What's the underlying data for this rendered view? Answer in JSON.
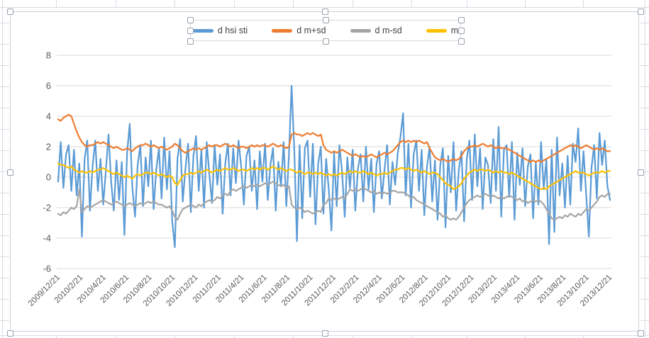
{
  "worksheet": {
    "description": "Excel worksheet with selected embedded chart",
    "cell_grid_color": "#d8dce3"
  },
  "chart_data": {
    "type": "line",
    "title": "",
    "xlabel": "",
    "ylabel": "",
    "ylim": [
      -6,
      8
    ],
    "y_ticks": [
      8,
      6,
      4,
      2,
      0,
      -2,
      -4,
      -6
    ],
    "grid": true,
    "legend_position": "top",
    "gridline_color": "#d9d9d9",
    "axis_text_color": "#595959",
    "n_points": 209,
    "x_tick_labels": [
      "2009/12/21",
      "2010/2/21",
      "2010/4/21",
      "2010/6/21",
      "2010/8/21",
      "2010/10/21",
      "2010/12/21",
      "2011/2/21",
      "2011/4/21",
      "2011/6/21",
      "2011/8/21",
      "2011/10/21",
      "2011/12/21",
      "2012/2/21",
      "2012/4/21",
      "2012/6/21",
      "2012/8/21",
      "2012/10/21",
      "2012/12/21",
      "2013/2/21",
      "2013/4/21",
      "2013/6/21",
      "2013/8/21",
      "2013/10/21",
      "2013/12/21"
    ],
    "series": [
      {
        "name": "d hsi sti",
        "color": "#5B9BD5",
        "values": [
          -0.3,
          2.3,
          -0.7,
          1.5,
          2.1,
          -0.9,
          1.8,
          -1.2,
          0.9,
          -3.9,
          1.2,
          2.4,
          -2.2,
          0.7,
          2.4,
          -0.9,
          1.2,
          -1.8,
          0.4,
          2.8,
          -0.3,
          -2.2,
          1.1,
          -1.5,
          1.0,
          -3.8,
          1.6,
          3.5,
          -0.7,
          -2.6,
          0.8,
          2.1,
          -1.9,
          1.3,
          -0.6,
          2.4,
          -2.1,
          0.5,
          1.9,
          -1.4,
          2.6,
          -0.8,
          1.7,
          -2.9,
          -4.6,
          1.2,
          2.5,
          -1.6,
          0.6,
          2.2,
          -2.3,
          1.4,
          2.7,
          -0.9,
          1.8,
          -2.0,
          2.3,
          0.2,
          -1.7,
          2.1,
          -0.5,
          1.5,
          -2.4,
          0.9,
          2.2,
          -1.2,
          1.9,
          -0.4,
          2.4,
          0.7,
          -1.8,
          1.4,
          2.0,
          -0.9,
          1.1,
          -2.1,
          1.7,
          -0.3,
          2.2,
          -1.5,
          0.8,
          1.9,
          -2.2,
          1.0,
          -0.6,
          2.3,
          -1.9,
          1.5,
          6.0,
          1.8,
          -4.2,
          2.1,
          -2.7,
          1.9,
          2.4,
          -1.3,
          2.2,
          -3.1,
          0.9,
          2.0,
          -2.4,
          1.2,
          -0.8,
          -3.5,
          1.6,
          -1.9,
          2.1,
          0.4,
          -2.6,
          1.3,
          -0.7,
          1.8,
          -2.2,
          0.6,
          1.5,
          -1.6,
          2.0,
          -0.8,
          1.2,
          -2.3,
          0.9,
          1.7,
          -1.4,
          0.5,
          2.1,
          -1.8,
          1.0,
          -0.5,
          1.6,
          2.6,
          4.2,
          -1.2,
          2.2,
          -2.0,
          1.5,
          2.4,
          -0.9,
          1.8,
          -2.5,
          0.7,
          2.0,
          -1.6,
          1.1,
          -2.8,
          0.8,
          1.9,
          -3.3,
          1.4,
          -1.0,
          2.3,
          -2.2,
          0.5,
          1.7,
          -2.9,
          1.2,
          2.4,
          -1.5,
          2.8,
          -0.6,
          1.9,
          -2.1,
          1.3,
          0.8,
          -1.7,
          2.5,
          -0.9,
          3.3,
          -2.6,
          1.8,
          2.1,
          -1.3,
          2.3,
          -2.8,
          1.6,
          -0.5,
          1.9,
          -1.9,
          0.7,
          1.5,
          -2.7,
          1.0,
          -1.8,
          2.3,
          -0.8,
          1.2,
          -4.4,
          1.8,
          -3.6,
          2.6,
          -1.2,
          0.9,
          -2.0,
          1.4,
          -1.8,
          2.2,
          1.0,
          3.2,
          -0.9,
          1.7,
          -1.2,
          -3.9,
          0.6,
          2.1,
          -1.4,
          2.9,
          0.8,
          2.4,
          -0.6,
          -1.5
        ]
      },
      {
        "name": "d m+sd",
        "color": "#ED7D31",
        "values": [
          3.8,
          3.7,
          3.9,
          4.0,
          4.1,
          4.0,
          3.5,
          3.0,
          2.6,
          2.3,
          2.1,
          2.0,
          2.1,
          2.1,
          2.2,
          2.3,
          2.2,
          2.3,
          2.2,
          2.1,
          2.0,
          1.9,
          2.0,
          1.9,
          1.8,
          1.8,
          1.9,
          1.8,
          1.7,
          1.9,
          2.0,
          2.1,
          2.1,
          2.2,
          2.1,
          2.0,
          2.1,
          2.0,
          1.9,
          2.0,
          1.9,
          1.8,
          1.9,
          2.0,
          2.2,
          2.1,
          1.9,
          1.7,
          1.6,
          1.7,
          1.8,
          1.9,
          1.8,
          1.9,
          1.8,
          1.9,
          2.0,
          2.1,
          2.0,
          2.1,
          2.1,
          2.0,
          2.1,
          2.2,
          2.1,
          2.0,
          2.1,
          2.0,
          1.9,
          2.0,
          2.0,
          1.9,
          2.0,
          2.1,
          2.0,
          2.1,
          2.0,
          2.1,
          2.1,
          2.0,
          2.1,
          2.2,
          2.1,
          2.0,
          2.1,
          2.0,
          1.9,
          2.0,
          2.8,
          2.9,
          2.8,
          2.8,
          2.7,
          2.8,
          2.9,
          2.8,
          2.9,
          2.8,
          2.7,
          2.8,
          2.1,
          1.8,
          1.7,
          1.6,
          1.7,
          1.6,
          1.7,
          1.8,
          1.7,
          1.6,
          1.5,
          1.4,
          1.5,
          1.4,
          1.3,
          1.4,
          1.3,
          1.4,
          1.5,
          1.4,
          1.3,
          1.4,
          1.5,
          1.6,
          1.5,
          1.6,
          1.7,
          1.9,
          2.1,
          2.3,
          2.4,
          2.3,
          2.4,
          2.3,
          2.4,
          2.3,
          2.4,
          2.3,
          2.2,
          2.3,
          1.9,
          1.6,
          1.3,
          1.2,
          1.1,
          1.2,
          1.1,
          1.0,
          1.1,
          1.2,
          1.1,
          1.2,
          1.4,
          1.7,
          1.9,
          2.0,
          2.0,
          2.1,
          2.0,
          2.1,
          2.2,
          2.1,
          2.0,
          2.1,
          2.0,
          1.9,
          2.0,
          1.9,
          1.9,
          1.9,
          1.8,
          1.7,
          1.6,
          1.5,
          1.4,
          1.3,
          1.2,
          1.1,
          1.0,
          1.1,
          1.0,
          1.1,
          1.0,
          1.1,
          1.2,
          1.3,
          1.4,
          1.5,
          1.6,
          1.7,
          1.8,
          1.9,
          2.0,
          2.1,
          2.0,
          2.1,
          2.0,
          1.9,
          2.0,
          2.1,
          2.0,
          1.9,
          1.8,
          1.9,
          1.8,
          1.9,
          1.8,
          1.7,
          1.7
        ]
      },
      {
        "name": "d m-sd",
        "color": "#A5A5A5",
        "values": [
          -2.4,
          -2.5,
          -2.3,
          -2.4,
          -2.2,
          -2.0,
          -2.1,
          -1.9,
          -0.8,
          -2.3,
          -2.1,
          -1.9,
          -2.0,
          -1.9,
          -1.8,
          -1.7,
          -1.6,
          -1.5,
          -1.6,
          -1.7,
          -1.8,
          -1.7,
          -1.6,
          -1.7,
          -1.8,
          -1.9,
          -1.8,
          -1.7,
          -1.8,
          -1.9,
          -1.8,
          -1.7,
          -1.8,
          -1.7,
          -1.6,
          -1.7,
          -1.6,
          -1.7,
          -1.8,
          -1.8,
          -1.9,
          -2.0,
          -1.9,
          -2.2,
          -2.6,
          -2.8,
          -2.4,
          -2.1,
          -2.0,
          -1.9,
          -1.8,
          -1.9,
          -2.0,
          -1.8,
          -1.9,
          -1.7,
          -1.6,
          -1.5,
          -1.6,
          -1.5,
          -1.3,
          -1.4,
          -1.2,
          -1.1,
          -1.2,
          -0.9,
          -0.8,
          -0.9,
          -0.8,
          -0.7,
          -0.6,
          -0.7,
          -0.6,
          -0.5,
          -0.6,
          -0.5,
          -0.6,
          -0.5,
          -0.4,
          -0.5,
          -0.4,
          -0.3,
          -0.4,
          -0.5,
          -0.6,
          -0.5,
          -0.7,
          -0.6,
          -1.8,
          -2.0,
          -2.1,
          -2.0,
          -2.1,
          -2.3,
          -2.2,
          -2.3,
          -2.4,
          -2.3,
          -2.2,
          -2.3,
          -1.8,
          -1.7,
          -1.4,
          -1.5,
          -1.4,
          -1.5,
          -1.4,
          -1.3,
          -1.4,
          -1.1,
          -0.8,
          -0.9,
          -0.8,
          -0.9,
          -0.8,
          -0.7,
          -0.8,
          -0.9,
          -1.0,
          -0.9,
          -1.1,
          -1.0,
          -1.1,
          -1.0,
          -1.1,
          -1.0,
          -0.9,
          -0.9,
          -1.0,
          -1.0,
          -1.0,
          -1.1,
          -1.2,
          -1.4,
          -1.3,
          -1.5,
          -1.6,
          -1.7,
          -1.8,
          -1.9,
          -2.0,
          -2.1,
          -2.2,
          -2.3,
          -2.4,
          -2.6,
          -2.5,
          -2.7,
          -2.8,
          -2.7,
          -2.8,
          -2.6,
          -2.3,
          -2.0,
          -1.7,
          -1.5,
          -1.4,
          -1.3,
          -1.2,
          -1.3,
          -1.2,
          -1.1,
          -1.2,
          -1.3,
          -1.2,
          -1.3,
          -1.4,
          -1.3,
          -1.4,
          -1.3,
          -1.2,
          -1.3,
          -1.4,
          -1.5,
          -1.4,
          -1.6,
          -1.5,
          -1.7,
          -1.6,
          -1.5,
          -1.6,
          -1.5,
          -1.6,
          -1.8,
          -2.1,
          -2.4,
          -2.7,
          -2.8,
          -2.7,
          -2.6,
          -2.7,
          -2.5,
          -2.6,
          -2.4,
          -2.5,
          -2.6,
          -2.4,
          -2.5,
          -2.3,
          -2.1,
          -2.2,
          -2.0,
          -1.8,
          -1.6,
          -1.3,
          -1.2,
          -1.3,
          -1.1,
          -1.1
        ]
      },
      {
        "name": "m",
        "color": "#FFC000",
        "values": [
          0.9,
          0.8,
          0.8,
          0.7,
          0.6,
          0.7,
          0.5,
          0.4,
          0.3,
          0.4,
          0.3,
          0.3,
          0.4,
          0.3,
          0.4,
          0.5,
          0.5,
          0.6,
          0.5,
          0.4,
          0.3,
          0.2,
          0.3,
          0.2,
          0.1,
          0.0,
          0.1,
          0.0,
          -0.1,
          0.1,
          0.2,
          0.1,
          0.2,
          0.3,
          0.3,
          0.2,
          0.3,
          0.2,
          0.1,
          0.2,
          0.1,
          0.0,
          0.1,
          0.0,
          -0.4,
          -0.5,
          -0.2,
          0.1,
          0.2,
          0.2,
          0.3,
          0.2,
          0.3,
          0.4,
          0.3,
          0.4,
          0.5,
          0.4,
          0.3,
          0.4,
          0.5,
          0.4,
          0.5,
          0.6,
          0.5,
          0.5,
          0.6,
          0.5,
          0.4,
          0.5,
          0.5,
          0.4,
          0.5,
          0.6,
          0.5,
          0.6,
          0.5,
          0.6,
          0.6,
          0.5,
          0.6,
          0.7,
          0.6,
          0.5,
          0.6,
          0.5,
          0.4,
          0.5,
          0.5,
          0.4,
          0.3,
          0.4,
          0.3,
          0.2,
          0.3,
          0.3,
          0.2,
          0.3,
          0.2,
          0.3,
          0.2,
          0.1,
          0.2,
          0.1,
          0.2,
          0.1,
          0.2,
          0.3,
          0.2,
          0.3,
          0.4,
          0.3,
          0.4,
          0.3,
          0.3,
          0.4,
          0.3,
          0.2,
          0.3,
          0.2,
          0.1,
          0.2,
          0.2,
          0.3,
          0.2,
          0.3,
          0.4,
          0.5,
          0.5,
          0.6,
          0.6,
          0.5,
          0.6,
          0.5,
          0.4,
          0.5,
          0.4,
          0.3,
          0.4,
          0.3,
          0.2,
          0.3,
          0.3,
          0.2,
          0.0,
          -0.2,
          -0.4,
          -0.5,
          -0.6,
          -0.8,
          -0.7,
          -0.6,
          -0.4,
          -0.1,
          0.1,
          0.3,
          0.4,
          0.5,
          0.4,
          0.5,
          0.5,
          0.4,
          0.5,
          0.4,
          0.3,
          0.4,
          0.3,
          0.4,
          0.3,
          0.3,
          0.2,
          0.3,
          0.2,
          0.1,
          0.0,
          -0.1,
          -0.2,
          -0.3,
          -0.4,
          -0.5,
          -0.6,
          -0.7,
          -0.8,
          -0.7,
          -0.8,
          -0.6,
          -0.5,
          -0.4,
          -0.3,
          -0.2,
          -0.1,
          0.0,
          0.1,
          0.2,
          0.3,
          0.4,
          0.3,
          0.3,
          0.3,
          0.2,
          0.1,
          0.2,
          0.3,
          0.3,
          0.3,
          0.4,
          0.3,
          0.4,
          0.4
        ]
      }
    ]
  }
}
